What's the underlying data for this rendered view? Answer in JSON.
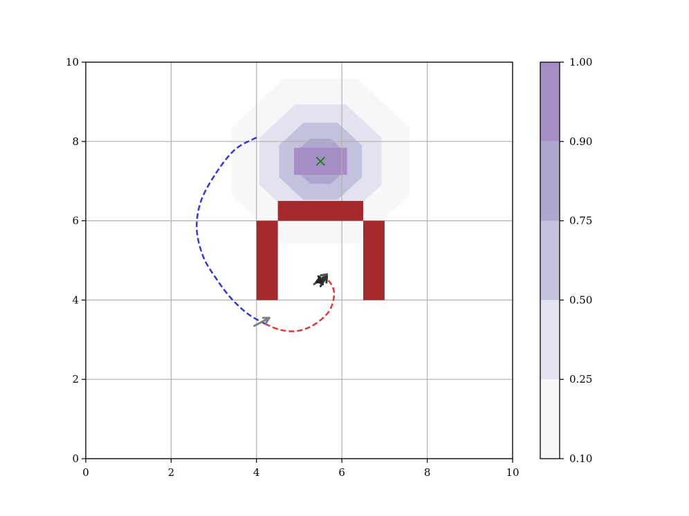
{
  "chart_data": {
    "type": "contour",
    "xlim": [
      0,
      10
    ],
    "ylim": [
      0,
      10
    ],
    "x_ticks": [
      0,
      2,
      4,
      6,
      8,
      10
    ],
    "y_ticks": [
      0,
      2,
      4,
      6,
      8,
      10
    ],
    "x_tick_labels": [
      "0",
      "2",
      "4",
      "6",
      "8",
      "10"
    ],
    "y_tick_labels": [
      "0",
      "2",
      "4",
      "6",
      "8",
      "10"
    ],
    "grid": true,
    "contour": {
      "center": [
        5.5,
        7.5
      ],
      "levels": [
        0.1,
        0.25,
        0.5,
        0.75,
        0.9,
        1.0
      ],
      "fill_colors": [
        "#f7f7fa",
        "#e3e3ef",
        "#c3c2de",
        "#afa6d0",
        "#a68dc5"
      ],
      "radii": [
        2.25,
        1.55,
        1.05,
        0.62
      ]
    },
    "obstacles": [
      {
        "x": [
          4.0,
          4.5
        ],
        "y": [
          4.0,
          6.0
        ]
      },
      {
        "x": [
          6.5,
          7.0
        ],
        "y": [
          4.0,
          6.0
        ]
      },
      {
        "x": [
          4.5,
          6.5
        ],
        "y": [
          6.0,
          6.5
        ]
      }
    ],
    "obstacle_color": "#a3292b",
    "target": {
      "x": 5.5,
      "y": 7.5,
      "marker": "x",
      "color": "#1a7f1a"
    },
    "trajectories": [
      {
        "color": "#3333e8",
        "style": "dashed",
        "points": [
          [
            4.0,
            8.1
          ],
          [
            3.5,
            7.8
          ],
          [
            3.05,
            7.2
          ],
          [
            2.7,
            6.5
          ],
          [
            2.6,
            5.8
          ],
          [
            2.75,
            5.1
          ],
          [
            3.05,
            4.55
          ],
          [
            3.4,
            4.05
          ],
          [
            3.8,
            3.65
          ],
          [
            4.2,
            3.4
          ]
        ]
      },
      {
        "color": "#ee3333",
        "style": "dashed",
        "points": [
          [
            4.2,
            3.4
          ],
          [
            4.55,
            3.25
          ],
          [
            4.95,
            3.22
          ],
          [
            5.35,
            3.38
          ],
          [
            5.7,
            3.72
          ],
          [
            5.82,
            4.15
          ],
          [
            5.72,
            4.45
          ],
          [
            5.55,
            4.58
          ]
        ]
      }
    ],
    "arrows": [
      {
        "color": "#808080",
        "from": [
          3.95,
          3.35
        ],
        "to": [
          4.3,
          3.55
        ]
      },
      {
        "color": "#555555",
        "from": [
          5.35,
          4.4
        ],
        "to": [
          5.65,
          4.65
        ]
      },
      {
        "color": "#222222",
        "from": [
          5.6,
          4.55
        ],
        "to": [
          5.4,
          4.45
        ]
      },
      {
        "color": "#222222",
        "from": [
          5.45,
          4.6
        ],
        "to": [
          5.55,
          4.4
        ]
      },
      {
        "color": "#333333",
        "from": [
          5.5,
          4.35
        ],
        "to": [
          5.65,
          4.6
        ]
      }
    ],
    "colorbar": {
      "ticks": [
        0.1,
        0.25,
        0.5,
        0.75,
        0.9,
        1.0
      ],
      "tick_labels": [
        "0.10",
        "0.25",
        "0.50",
        "0.75",
        "0.90",
        "1.00"
      ],
      "colors": [
        "#f7f7fa",
        "#e3e3ef",
        "#c3c2de",
        "#afa6d0",
        "#a68dc5"
      ]
    }
  }
}
